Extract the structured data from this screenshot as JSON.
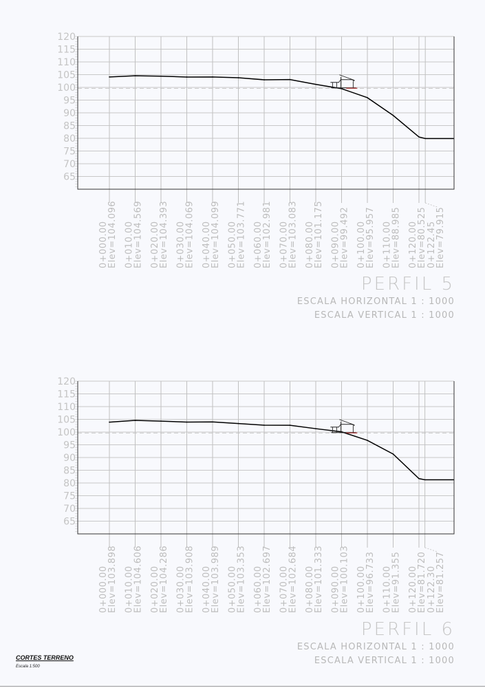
{
  "chart_data": [
    {
      "type": "line",
      "title": "PERFIL 5",
      "scale_h": "ESCALA HORIZONTAL 1 : 1000",
      "scale_v": "ESCALA VERTICAL 1 : 1000",
      "ylim": [
        60,
        120
      ],
      "yticks": [
        65,
        70,
        75,
        80,
        85,
        90,
        95,
        100,
        105,
        110,
        115,
        120
      ],
      "grid": true,
      "line_color": "#000000",
      "stations": [
        {
          "label": "0+000.00",
          "elev_label": "Elev=104.096",
          "x": 0,
          "y": 104.096
        },
        {
          "label": "0+010.00",
          "elev_label": "Elev=104.569",
          "x": 10,
          "y": 104.569
        },
        {
          "label": "0+020.00",
          "elev_label": "Elev=104.393",
          "x": 20,
          "y": 104.393
        },
        {
          "label": "0+030.00",
          "elev_label": "Elev=104.069",
          "x": 30,
          "y": 104.069
        },
        {
          "label": "0+040.00",
          "elev_label": "Elev=104.099",
          "x": 40,
          "y": 104.099
        },
        {
          "label": "0+050.00",
          "elev_label": "Elev=103.771",
          "x": 50,
          "y": 103.771
        },
        {
          "label": "0+060.00",
          "elev_label": "Elev=102.981",
          "x": 60,
          "y": 102.981
        },
        {
          "label": "0+070.00",
          "elev_label": "Elev=103.083",
          "x": 70,
          "y": 103.083
        },
        {
          "label": "0+080.00",
          "elev_label": "Elev=101.175",
          "x": 80,
          "y": 101.175
        },
        {
          "label": "0+090.00",
          "elev_label": "Elev=99.492",
          "x": 90,
          "y": 99.492
        },
        {
          "label": "0+100.00",
          "elev_label": "Elev=95.957",
          "x": 100,
          "y": 95.957
        },
        {
          "label": "0+110.00",
          "elev_label": "Elev=88.985",
          "x": 110,
          "y": 88.985
        },
        {
          "label": "0+120.00",
          "elev_label": "Elev=80.525",
          "x": 120,
          "y": 80.525
        },
        {
          "label": "0+122.45",
          "elev_label": "Elev=79.915",
          "x": 122.45,
          "y": 79.915
        }
      ],
      "extension_to": 133.5
    },
    {
      "type": "line",
      "title": "PERFIL 6",
      "scale_h": "ESCALA HORIZONTAL 1 : 1000",
      "scale_v": "ESCALA VERTICAL 1 : 1000",
      "ylim": [
        60,
        120
      ],
      "yticks": [
        65,
        70,
        75,
        80,
        85,
        90,
        95,
        100,
        105,
        110,
        115,
        120
      ],
      "grid": true,
      "line_color": "#000000",
      "stations": [
        {
          "label": "0+000.00",
          "elev_label": "Elev=103.898",
          "x": 0,
          "y": 103.898
        },
        {
          "label": "0+010.00",
          "elev_label": "Elev=104.606",
          "x": 10,
          "y": 104.606
        },
        {
          "label": "0+020.00",
          "elev_label": "Elev=104.286",
          "x": 20,
          "y": 104.286
        },
        {
          "label": "0+030.00",
          "elev_label": "Elev=103.908",
          "x": 30,
          "y": 103.908
        },
        {
          "label": "0+040.00",
          "elev_label": "Elev=103.989",
          "x": 40,
          "y": 103.989
        },
        {
          "label": "0+050.00",
          "elev_label": "Elev=103.353",
          "x": 50,
          "y": 103.353
        },
        {
          "label": "0+060.00",
          "elev_label": "Elev=102.697",
          "x": 60,
          "y": 102.697
        },
        {
          "label": "0+070.00",
          "elev_label": "Elev=102.684",
          "x": 70,
          "y": 102.684
        },
        {
          "label": "0+080.00",
          "elev_label": "Elev=101.333",
          "x": 80,
          "y": 101.333
        },
        {
          "label": "0+090.00",
          "elev_label": "Elev=100.103",
          "x": 90,
          "y": 100.103
        },
        {
          "label": "0+100.00",
          "elev_label": "Elev=96.733",
          "x": 100,
          "y": 96.733
        },
        {
          "label": "0+110.00",
          "elev_label": "Elev=91.355",
          "x": 110,
          "y": 91.355
        },
        {
          "label": "0+120.00",
          "elev_label": "Elev=81.720",
          "x": 120,
          "y": 81.72
        },
        {
          "label": "0+122.30",
          "elev_label": "Elev=81.257",
          "x": 122.3,
          "y": 81.257
        }
      ],
      "extension_to": 133.5
    }
  ],
  "sheet": {
    "title": "CORTES TERRENO",
    "scale": "Escala 1:500"
  }
}
